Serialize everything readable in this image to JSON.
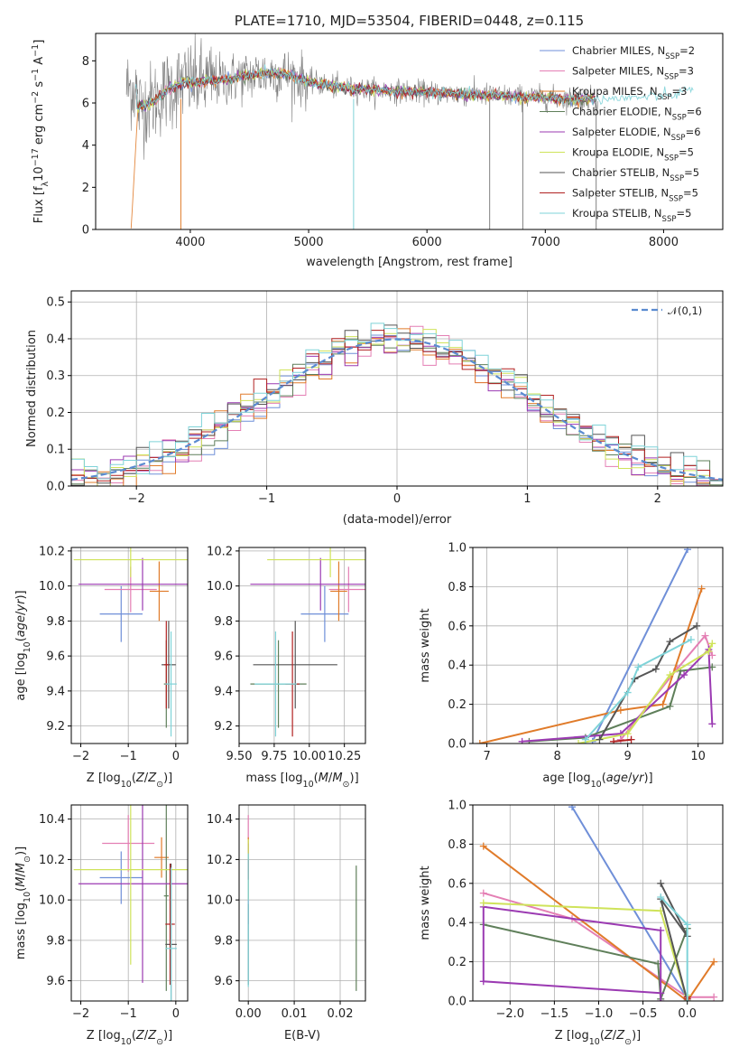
{
  "chart_data": [
    {
      "id": "spectrum",
      "type": "line",
      "title": "PLATE=1710, MJD=53504, FIBERID=0448, z=0.115",
      "xlabel": "wavelength [Angstrom, rest frame]",
      "ylabel": "Flux [f_λ 10^-17 erg cm^-2 s^-1 A^-1]",
      "xlim": [
        3200,
        8500
      ],
      "ylim": [
        0,
        9.3
      ],
      "xticks": [
        4000,
        5000,
        6000,
        7000,
        8000
      ],
      "yticks": [
        0,
        2,
        4,
        6,
        8
      ],
      "xtick_labels": [
        "4000",
        "5000",
        "6000",
        "7000",
        "8000"
      ],
      "ytick_labels": [
        "0",
        "2",
        "4",
        "6",
        "8"
      ],
      "grid": false,
      "legend": "top-right",
      "continuum": {
        "x": [
          3550,
          3620,
          3700,
          3800,
          3950,
          4100,
          4300,
          4600,
          4800,
          5000,
          5300,
          5600,
          6000,
          6400,
          6800,
          7200,
          7600,
          7900,
          8100,
          8250
        ],
        "y": [
          5.8,
          5.9,
          6.1,
          6.6,
          7.0,
          7.0,
          7.1,
          7.4,
          7.4,
          7.0,
          6.7,
          6.6,
          6.5,
          6.4,
          6.3,
          6.2,
          6.2,
          6.3,
          6.4,
          6.7
        ]
      },
      "data_x_range": [
        3460,
        7450
      ],
      "dips": [
        {
          "x": 3920,
          "y": 0
        },
        {
          "x": 5380,
          "y": 0
        },
        {
          "x": 6530,
          "y": 0
        },
        {
          "x": 6810,
          "y": 0
        },
        {
          "x": 7430,
          "y": 0
        }
      ],
      "series": [
        {
          "name": "Chabrier MILES, N_SSP=2",
          "label": "Chabrier MILES, N",
          "sub": "SSP",
          "suffix": "=2",
          "color": "#6f8fd8"
        },
        {
          "name": "Salpeter MILES, N_SSP=3",
          "label": "Salpeter MILES, N",
          "sub": "SSP",
          "suffix": "=3",
          "color": "#e47fb4"
        },
        {
          "name": "Kroupa MILES, N_SSP=3",
          "label": "Kroupa MILES, N",
          "sub": "SSP",
          "suffix": "=3",
          "color": "#e07b2a"
        },
        {
          "name": "Chabrier ELODIE, N_SSP=6",
          "label": "Chabrier ELODIE, N",
          "sub": "SSP",
          "suffix": "=6",
          "color": "#5f7f5a"
        },
        {
          "name": "Salpeter ELODIE, N_SSP=6",
          "label": "Salpeter ELODIE, N",
          "sub": "SSP",
          "suffix": "=6",
          "color": "#9b3ab2"
        },
        {
          "name": "Kroupa ELODIE, N_SSP=5",
          "label": "Kroupa ELODIE, N",
          "sub": "SSP",
          "suffix": "=5",
          "color": "#cfe35a"
        },
        {
          "name": "Chabrier STELIB, N_SSP=5",
          "label": "Chabrier STELIB, N",
          "sub": "SSP",
          "suffix": "=5",
          "color": "#555555"
        },
        {
          "name": "Salpeter STELIB, N_SSP=5",
          "label": "Salpeter STELIB, N",
          "sub": "SSP",
          "suffix": "=5",
          "color": "#b12121"
        },
        {
          "name": "Kroupa STELIB, N_SSP=5",
          "label": "Kroupa STELIB, N",
          "sub": "SSP",
          "suffix": "=5",
          "color": "#7fd3d8"
        }
      ]
    },
    {
      "id": "residuals",
      "type": "histogram",
      "xlabel": "(data-model)/error",
      "ylabel": "Normed distribution",
      "xlim": [
        -2.5,
        2.5
      ],
      "ylim": [
        0,
        0.53
      ],
      "xticks": [
        -2,
        -1,
        0,
        1,
        2
      ],
      "xtick_labels": [
        "−2",
        "−1",
        "0",
        "1",
        "2"
      ],
      "yticks": [
        0.0,
        0.1,
        0.2,
        0.3,
        0.4,
        0.5
      ],
      "ytick_labels": [
        "0.0",
        "0.1",
        "0.2",
        "0.3",
        "0.4",
        "0.5"
      ],
      "grid": true,
      "legend": "top-right",
      "reference": {
        "name": "𝒩(0,1)",
        "color": "#5b8bd0"
      },
      "bin_width": 0.1
    },
    {
      "id": "age_vs_Z",
      "type": "errorbar",
      "xlabel": "Z [log10(Z/Z⊙)]",
      "ylabel": "age [log10(age/yr)]",
      "xlim": [
        -2.2,
        0.25
      ],
      "ylim": [
        9.1,
        10.22
      ],
      "xticks": [
        -2,
        -1,
        0
      ],
      "xtick_labels": [
        "−2",
        "−1",
        "0"
      ],
      "yticks": [
        9.2,
        9.4,
        9.6,
        9.8,
        10.0,
        10.2
      ],
      "ytick_labels": [
        "9.2",
        "9.4",
        "9.6",
        "9.8",
        "10.0",
        "10.2"
      ],
      "grid": true,
      "points": [
        {
          "x": -1.15,
          "xerr": 0.45,
          "y": 9.84,
          "yerr": 0.16,
          "color": "#6f8fd8"
        },
        {
          "x": -0.95,
          "xerr": 0.55,
          "y": 9.98,
          "yerr": 0.13,
          "color": "#e47fb4"
        },
        {
          "x": -0.35,
          "xerr": 0.2,
          "y": 9.97,
          "yerr": 0.17,
          "color": "#e07b2a"
        },
        {
          "x": -0.2,
          "xerr": 0.05,
          "y": 9.44,
          "yerr": 0.25,
          "color": "#5f7f5a"
        },
        {
          "x": -0.7,
          "xerr": 1.35,
          "y": 10.01,
          "yerr": 0.15,
          "color": "#9b3ab2"
        },
        {
          "x": -0.95,
          "xerr": 1.2,
          "y": 10.15,
          "yerr": 0.1,
          "color": "#cfe35a"
        },
        {
          "x": -0.15,
          "xerr": 0.15,
          "y": 9.55,
          "yerr": 0.25,
          "color": "#555555"
        },
        {
          "x": -0.2,
          "xerr": 0.05,
          "y": 9.55,
          "yerr": 0.25,
          "color": "#b12121"
        },
        {
          "x": -0.1,
          "xerr": 0.12,
          "y": 9.44,
          "yerr": 0.3,
          "color": "#7fd3d8"
        }
      ]
    },
    {
      "id": "age_vs_mass",
      "type": "errorbar",
      "xlabel": "mass [log10(M/M⊙)]",
      "ylabel": "",
      "xlim": [
        9.5,
        10.4
      ],
      "ylim": [
        9.1,
        10.22
      ],
      "xticks": [
        9.5,
        9.75,
        10.0,
        10.25
      ],
      "xtick_labels": [
        "9.50",
        "9.75",
        "10.00",
        "10.25"
      ],
      "yticks": [
        9.2,
        9.4,
        9.6,
        9.8,
        10.0,
        10.2
      ],
      "ytick_labels": [
        "9.2",
        "9.4",
        "9.6",
        "9.8",
        "10.0",
        "10.2"
      ],
      "grid": true,
      "points": [
        {
          "x": 10.11,
          "xerr": 0.17,
          "y": 9.84,
          "yerr": 0.16,
          "color": "#6f8fd8"
        },
        {
          "x": 10.28,
          "xerr": 0.14,
          "y": 9.98,
          "yerr": 0.13,
          "color": "#e47fb4"
        },
        {
          "x": 10.21,
          "xerr": 0.06,
          "y": 9.97,
          "yerr": 0.17,
          "color": "#e07b2a"
        },
        {
          "x": 9.78,
          "xerr": 0.2,
          "y": 9.44,
          "yerr": 0.25,
          "color": "#5f7f5a"
        },
        {
          "x": 10.08,
          "xerr": 0.5,
          "y": 10.01,
          "yerr": 0.15,
          "color": "#9b3ab2"
        },
        {
          "x": 10.15,
          "xerr": 0.45,
          "y": 10.15,
          "yerr": 0.1,
          "color": "#cfe35a"
        },
        {
          "x": 9.9,
          "xerr": 0.3,
          "y": 9.55,
          "yerr": 0.25,
          "color": "#555555"
        },
        {
          "x": 9.88,
          "xerr": 0.05,
          "y": 9.44,
          "yerr": 0.3,
          "color": "#b12121"
        },
        {
          "x": 9.76,
          "xerr": 0.15,
          "y": 9.44,
          "yerr": 0.3,
          "color": "#7fd3d8"
        }
      ]
    },
    {
      "id": "weight_vs_age",
      "type": "line",
      "xlabel": "age [log10(age/yr)]",
      "ylabel": "mass weight",
      "xlim": [
        6.8,
        10.35
      ],
      "ylim": [
        0,
        1.0
      ],
      "xticks": [
        7,
        8,
        9,
        10
      ],
      "xtick_labels": [
        "7",
        "8",
        "9",
        "10"
      ],
      "yticks": [
        0.0,
        0.2,
        0.4,
        0.6,
        0.8,
        1.0
      ],
      "ytick_labels": [
        "0.0",
        "0.2",
        "0.4",
        "0.6",
        "0.8",
        "1.0"
      ],
      "grid": true,
      "series": [
        {
          "color": "#6f8fd8",
          "x": [
            8.5,
            9.85
          ],
          "y": [
            0.01,
            0.99
          ]
        },
        {
          "color": "#e47fb4",
          "x": [
            8.9,
            9.7,
            10.1,
            10.2
          ],
          "y": [
            0.02,
            0.38,
            0.55,
            0.45
          ]
        },
        {
          "color": "#e07b2a",
          "x": [
            6.9,
            8.9,
            9.5,
            10.05
          ],
          "y": [
            0.0,
            0.17,
            0.2,
            0.79
          ]
        },
        {
          "color": "#5f7f5a",
          "x": [
            7.6,
            8.4,
            9.6,
            9.75,
            10.2
          ],
          "y": [
            0.01,
            0.03,
            0.19,
            0.37,
            0.39
          ]
        },
        {
          "color": "#9b3ab2",
          "x": [
            7.5,
            8.9,
            9.8,
            10.15,
            10.2
          ],
          "y": [
            0.01,
            0.05,
            0.35,
            0.48,
            0.1
          ]
        },
        {
          "color": "#cfe35a",
          "x": [
            8.3,
            9.0,
            9.6,
            10.15,
            10.2
          ],
          "y": [
            0.0,
            0.05,
            0.35,
            0.47,
            0.51
          ]
        },
        {
          "color": "#555555",
          "x": [
            8.6,
            9.1,
            9.4,
            9.6,
            9.98
          ],
          "y": [
            0.02,
            0.33,
            0.38,
            0.52,
            0.6
          ]
        },
        {
          "color": "#b12121",
          "x": [
            8.8,
            9.05
          ],
          "y": [
            0.01,
            0.02
          ]
        },
        {
          "color": "#7fd3d8",
          "x": [
            8.4,
            9.0,
            9.15,
            9.9
          ],
          "y": [
            0.02,
            0.26,
            0.39,
            0.53
          ]
        }
      ]
    },
    {
      "id": "mass_vs_Z",
      "type": "errorbar",
      "xlabel": "Z [log10(Z/Z⊙)]",
      "ylabel": "mass [log10(M/M⊙)]",
      "xlim": [
        -2.2,
        0.25
      ],
      "ylim": [
        9.5,
        10.47
      ],
      "xticks": [
        -2,
        -1,
        0
      ],
      "xtick_labels": [
        "−2",
        "−1",
        "0"
      ],
      "yticks": [
        9.6,
        9.8,
        10.0,
        10.2,
        10.4
      ],
      "ytick_labels": [
        "9.6",
        "9.8",
        "10.0",
        "10.2",
        "10.4"
      ],
      "grid": true,
      "points": [
        {
          "x": -1.15,
          "xerr": 0.45,
          "y": 10.11,
          "yerr": 0.13,
          "color": "#6f8fd8"
        },
        {
          "x": -1.0,
          "xerr": 0.55,
          "y": 10.28,
          "yerr": 0.14,
          "color": "#e47fb4"
        },
        {
          "x": -0.3,
          "xerr": 0.15,
          "y": 10.21,
          "yerr": 0.1,
          "color": "#e07b2a"
        },
        {
          "x": -0.2,
          "xerr": 0.05,
          "y": 10.02,
          "yerr": 0.47,
          "color": "#5f7f5a"
        },
        {
          "x": -0.7,
          "xerr": 1.35,
          "y": 10.08,
          "yerr": 0.49,
          "color": "#9b3ab2"
        },
        {
          "x": -0.95,
          "xerr": 1.2,
          "y": 10.15,
          "yerr": 0.47,
          "color": "#cfe35a"
        },
        {
          "x": -0.1,
          "xerr": 0.12,
          "y": 9.78,
          "yerr": 0.4,
          "color": "#555555"
        },
        {
          "x": -0.12,
          "xerr": 0.1,
          "y": 9.88,
          "yerr": 0.3,
          "color": "#b12121"
        },
        {
          "x": -0.1,
          "xerr": 0.12,
          "y": 9.76,
          "yerr": 0.4,
          "color": "#7fd3d8"
        }
      ]
    },
    {
      "id": "mass_vs_ebv",
      "type": "errorbar",
      "xlabel": "E(B-V)",
      "ylabel": "",
      "xlim": [
        -0.002,
        0.0255
      ],
      "ylim": [
        9.5,
        10.47
      ],
      "xticks": [
        0.0,
        0.01,
        0.02
      ],
      "xtick_labels": [
        "0.00",
        "0.01",
        "0.02"
      ],
      "yticks": [
        9.6,
        9.8,
        10.0,
        10.2,
        10.4
      ],
      "ytick_labels": [
        "9.6",
        "9.8",
        "10.0",
        "10.2",
        "10.4"
      ],
      "grid": true,
      "points": [
        {
          "x": 0.0,
          "xerr": 0,
          "y": 10.11,
          "yerr": 0.1,
          "color": "#6f8fd8"
        },
        {
          "x": 0.0,
          "xerr": 0,
          "y": 10.28,
          "yerr": 0.14,
          "color": "#e47fb4"
        },
        {
          "x": 0.0,
          "xerr": 0,
          "y": 10.21,
          "yerr": 0.1,
          "color": "#e07b2a"
        },
        {
          "x": 0.0235,
          "xerr": 0,
          "y": 9.86,
          "yerr": 0.31,
          "color": "#5f7f5a"
        },
        {
          "x": 0.0,
          "xerr": 0,
          "y": 10.08,
          "yerr": 0.2,
          "color": "#9b3ab2"
        },
        {
          "x": 0.0,
          "xerr": 0,
          "y": 10.15,
          "yerr": 0.15,
          "color": "#cfe35a"
        },
        {
          "x": 0.0,
          "xerr": 0,
          "y": 9.78,
          "yerr": 0.2,
          "color": "#555555"
        },
        {
          "x": 0.0,
          "xerr": 0,
          "y": 10.15,
          "yerr": 0.05,
          "color": "#b12121"
        },
        {
          "x": 0.0,
          "xerr": 0,
          "y": 9.9,
          "yerr": 0.33,
          "color": "#7fd3d8"
        }
      ]
    },
    {
      "id": "weight_vs_Z",
      "type": "line",
      "xlabel": "Z [log10(Z/Z⊙)]",
      "ylabel": "mass weight",
      "xlim": [
        -2.42,
        0.4
      ],
      "ylim": [
        0,
        1.0
      ],
      "xticks": [
        -2.0,
        -1.5,
        -1.0,
        -0.5,
        0.0
      ],
      "xtick_labels": [
        "−2.0",
        "−1.5",
        "−1.0",
        "−0.5",
        "0.0"
      ],
      "yticks": [
        0.0,
        0.2,
        0.4,
        0.6,
        0.8,
        1.0
      ],
      "ytick_labels": [
        "0.0",
        "0.2",
        "0.4",
        "0.6",
        "0.8",
        "1.0"
      ],
      "grid": true,
      "series": [
        {
          "color": "#6f8fd8",
          "x": [
            -1.3,
            0.0
          ],
          "y": [
            0.99,
            0.01
          ]
        },
        {
          "color": "#e47fb4",
          "x": [
            -2.3,
            -1.3,
            0.0,
            0.3
          ],
          "y": [
            0.55,
            0.42,
            0.02,
            0.02
          ]
        },
        {
          "color": "#e07b2a",
          "x": [
            -2.3,
            0.0,
            0.3
          ],
          "y": [
            0.79,
            0.0,
            0.2
          ]
        },
        {
          "color": "#5f7f5a",
          "x": [
            -2.3,
            -0.33,
            -0.3,
            0.0
          ],
          "y": [
            0.39,
            0.19,
            0.01,
            0.37
          ]
        },
        {
          "color": "#9b3ab2",
          "x": [
            -0.3,
            -2.3,
            -2.3,
            -0.3,
            -0.3
          ],
          "y": [
            0.04,
            0.1,
            0.48,
            0.36,
            0.0
          ]
        },
        {
          "color": "#cfe35a",
          "x": [
            -2.3,
            -0.3,
            0.0,
            0.0
          ],
          "y": [
            0.5,
            0.46,
            0.0,
            0.03
          ]
        },
        {
          "color": "#555555",
          "x": [
            -0.3,
            0.0,
            -0.3,
            0.0
          ],
          "y": [
            0.6,
            0.33,
            0.52,
            0.0
          ]
        },
        {
          "color": "#b12121",
          "x": [
            0.0,
            0.0
          ],
          "y": [
            0.01,
            0.02
          ]
        },
        {
          "color": "#7fd3d8",
          "x": [
            -0.3,
            0.0,
            0.0
          ],
          "y": [
            0.53,
            0.39,
            0.0
          ]
        }
      ]
    }
  ]
}
